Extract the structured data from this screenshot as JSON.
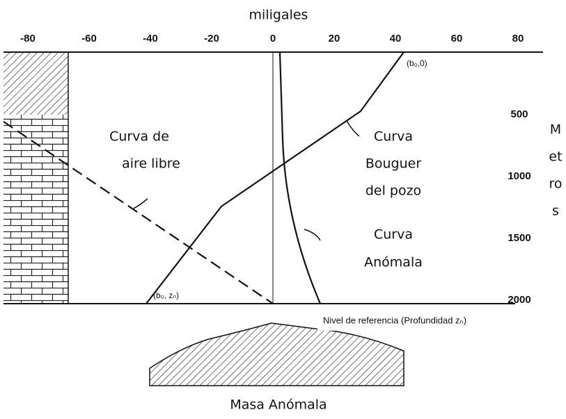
{
  "top_axis": {
    "label": "miligales",
    "ticks": [
      "-80",
      "-60",
      "-40",
      "-20",
      "0",
      "20",
      "40",
      "60",
      "80"
    ]
  },
  "depth_axis": {
    "label": [
      "M",
      "et",
      "ro",
      "s"
    ],
    "ticks": [
      "500",
      "1000",
      "1500",
      "2000"
    ]
  },
  "curves": {
    "free_air": {
      "label": [
        "Curva de",
        "aire libre"
      ]
    },
    "bouguer": {
      "label": [
        "Curva",
        "Bouguer",
        "del pozo"
      ],
      "top_point": "(b₀,0)",
      "bottom_point": "(b₀, zₙ)"
    },
    "anomalous": {
      "label": [
        "Curva",
        "Anómala"
      ]
    }
  },
  "reference_level": "Nivel de referencia (Profundidad zₙ)",
  "mass": "Masa Anómala"
}
